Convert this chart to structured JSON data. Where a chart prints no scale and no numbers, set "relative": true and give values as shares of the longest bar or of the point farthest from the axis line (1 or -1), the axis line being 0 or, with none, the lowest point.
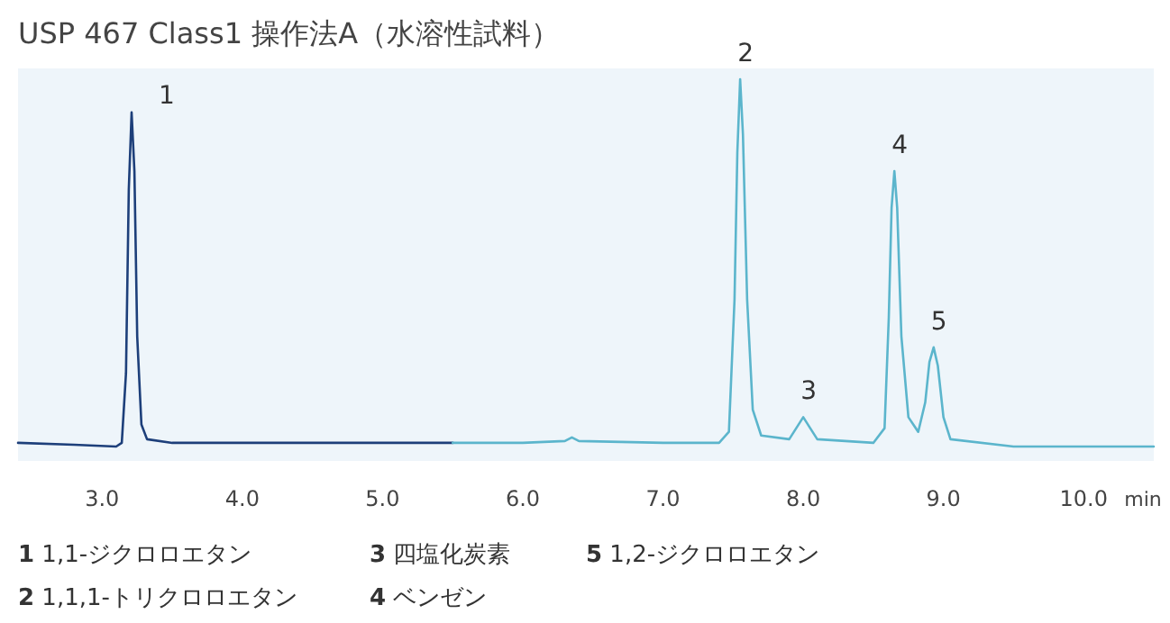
{
  "chart_data": {
    "type": "line",
    "relative": true,
    "title": "USP 467 Class1 操作法A（水溶性試料）",
    "xlabel": "min",
    "xlim": [
      2.4,
      10.5
    ],
    "xticks": [
      {
        "value": 3,
        "label": "3.0"
      },
      {
        "value": 4,
        "label": "4.0"
      },
      {
        "value": 5,
        "label": "5.0"
      },
      {
        "value": 6,
        "label": "6.0"
      },
      {
        "value": 7,
        "label": "7.0"
      },
      {
        "value": 8,
        "label": "8.0"
      },
      {
        "value": 9,
        "label": "9.0"
      },
      {
        "value": 10,
        "label": "10.0"
      }
    ],
    "tick_labels": "x",
    "series": [
      {
        "color": "#1d3f7a",
        "x": [
          2.4,
          2.8,
          3.1,
          3.14,
          3.17,
          3.19,
          3.21,
          3.23,
          3.25,
          3.28,
          3.32,
          3.5,
          4.0,
          4.5,
          5.0,
          5.5
        ],
        "values": [
          0.01,
          0.005,
          0.0,
          0.01,
          0.2,
          0.7,
          0.91,
          0.75,
          0.3,
          0.06,
          0.02,
          0.01,
          0.01,
          0.01,
          0.01,
          0.01
        ]
      },
      {
        "color": "#5bb5cc",
        "x": [
          5.5,
          6.0,
          6.3,
          6.35,
          6.4,
          7.0,
          7.4,
          7.47,
          7.51,
          7.53,
          7.55,
          7.57,
          7.6,
          7.64,
          7.7,
          7.9,
          7.95,
          8.0,
          8.05,
          8.1,
          8.5,
          8.58,
          8.61,
          8.63,
          8.65,
          8.67,
          8.7,
          8.75,
          8.82,
          8.87,
          8.9,
          8.93,
          8.96,
          9.0,
          9.05,
          9.5,
          10.0,
          10.5
        ],
        "values": [
          0.01,
          0.01,
          0.015,
          0.025,
          0.015,
          0.01,
          0.01,
          0.04,
          0.4,
          0.8,
          1.0,
          0.85,
          0.4,
          0.1,
          0.03,
          0.02,
          0.05,
          0.08,
          0.05,
          0.02,
          0.01,
          0.05,
          0.35,
          0.65,
          0.75,
          0.65,
          0.3,
          0.08,
          0.04,
          0.12,
          0.23,
          0.27,
          0.22,
          0.08,
          0.02,
          0.0,
          0.0,
          0.0
        ]
      }
    ],
    "annotations": [
      {
        "text": "1",
        "x": 3.21,
        "y": 0.91
      },
      {
        "text": "2",
        "x": 7.55,
        "y": 1.0
      },
      {
        "text": "3",
        "x": 8.0,
        "y": 0.08
      },
      {
        "text": "4",
        "x": 8.65,
        "y": 0.75
      },
      {
        "text": "5",
        "x": 8.93,
        "y": 0.27
      },
      "**1** 1,1-ジクロロエタン",
      "**3** 四塩化炭素",
      "**5** 1,2-ジクロロエタン",
      "**2** 1,1,1-トリクロロエタン",
      "**4** ベンゼン"
    ]
  }
}
